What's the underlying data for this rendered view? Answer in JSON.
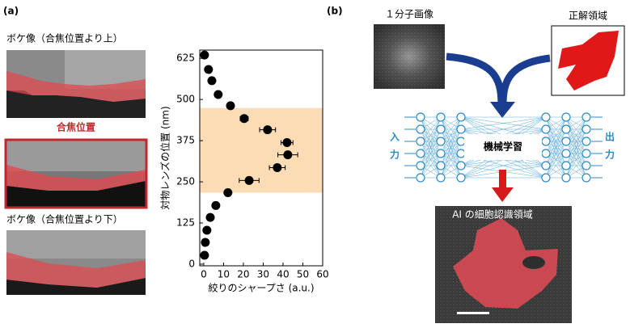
{
  "panel_a": {
    "label": "(a)",
    "captions": [
      "ボケ像（合焦位置より上）",
      "合焦位置",
      "ボケ像（合焦位置より下）"
    ]
  },
  "chart_data": {
    "type": "scatter",
    "xlabel": "絞りのシャープさ (a.u.)",
    "ylabel": "対物レンズの位置 (nm)",
    "x": [
      0.4,
      2.4,
      4.1,
      7.3,
      13.5,
      20.4,
      32.2,
      42,
      42.4,
      37.1,
      22.9,
      12.2,
      6.1,
      3.3,
      1.6,
      0.8,
      0.4
    ],
    "y": [
      635,
      591,
      557,
      515,
      481,
      442,
      408,
      369,
      332,
      293,
      254,
      217,
      178,
      142,
      103,
      66,
      27
    ],
    "xerr": [
      null,
      null,
      null,
      null,
      null,
      2,
      4,
      3,
      5,
      4,
      5,
      null,
      null,
      null,
      null,
      null,
      null
    ],
    "color": "#000000",
    "band": {
      "range": [
        217,
        474
      ],
      "color": "#fbdcb4"
    },
    "xlim": [
      -2,
      60
    ],
    "ylim": [
      -5,
      650
    ],
    "xticks": [
      0,
      10,
      20,
      30,
      40,
      50,
      60
    ],
    "yticks": [
      0,
      125,
      250,
      375,
      500,
      625
    ]
  },
  "panel_b": {
    "label": "(b)",
    "single_molecule": "１分子画像",
    "ground_truth": "正解領域",
    "input": [
      "入",
      "力"
    ],
    "learning": "機械学習",
    "output": [
      "出",
      "力"
    ],
    "ai_region": "AI の細胞認識領域"
  }
}
